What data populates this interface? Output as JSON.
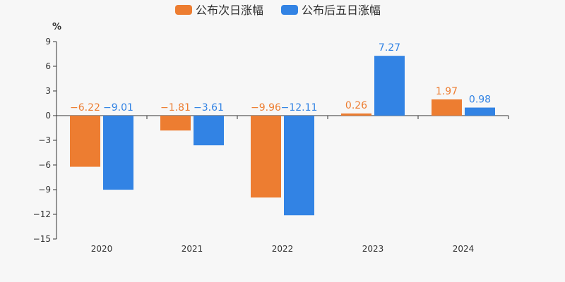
{
  "chart_data": {
    "type": "bar",
    "title": "",
    "xlabel": "",
    "ylabel": "%",
    "categories": [
      "2020",
      "2021",
      "2022",
      "2023",
      "2024"
    ],
    "series": [
      {
        "name": "公布次日涨幅",
        "color": "#ed7d31",
        "values": [
          -6.22,
          -1.81,
          -9.96,
          0.26,
          1.97
        ],
        "labels": [
          "−6.22",
          "−1.81",
          "−9.96",
          "0.26",
          "1.97"
        ]
      },
      {
        "name": "公布后五日涨幅",
        "color": "#3283e4",
        "values": [
          -9.01,
          -3.61,
          -12.11,
          7.27,
          0.98
        ],
        "labels": [
          "−9.01",
          "−3.61",
          "−12.11",
          "7.27",
          "0.98"
        ]
      }
    ],
    "ylim": [
      -15,
      9
    ],
    "yticks": [
      9,
      6,
      3,
      0,
      -3,
      -6,
      -9,
      -12,
      -15
    ],
    "ytick_labels": [
      "9",
      "6",
      "3",
      "0",
      "−3",
      "−6",
      "−9",
      "−12",
      "−15"
    ],
    "grid": false,
    "legend_position": "top-center"
  }
}
